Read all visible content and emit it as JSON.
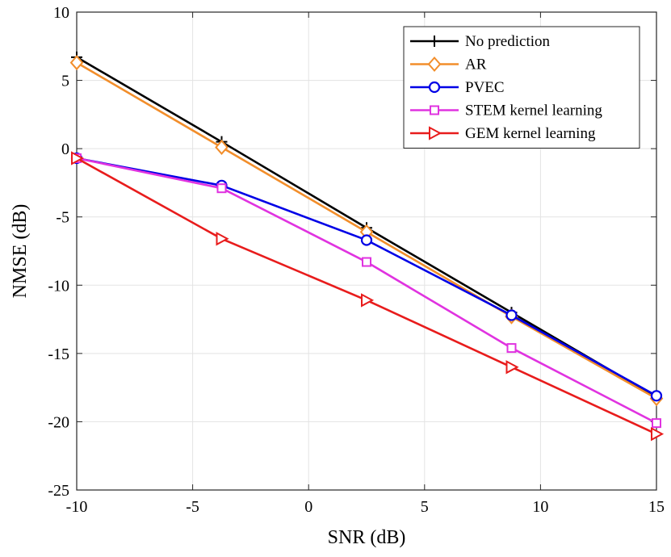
{
  "chart_data": {
    "type": "line",
    "title": "",
    "xlabel": "SNR (dB)",
    "ylabel": "NMSE (dB)",
    "xlim": [
      -10,
      15
    ],
    "ylim": [
      -25,
      10
    ],
    "xticks": [
      -10,
      -5,
      0,
      5,
      10,
      15
    ],
    "yticks": [
      -25,
      -20,
      -15,
      -10,
      -5,
      0,
      5,
      10
    ],
    "grid": true,
    "legend_position": "top-right",
    "x": [
      -10,
      -3.75,
      2.5,
      8.75,
      15
    ],
    "series": [
      {
        "name": "No prediction",
        "color": "#000000",
        "marker": "plus",
        "values": [
          6.7,
          0.5,
          -5.8,
          -12.0,
          -18.2
        ]
      },
      {
        "name": "AR",
        "color": "#f28e2b",
        "marker": "diamond",
        "values": [
          6.3,
          0.1,
          -6.1,
          -12.3,
          -18.3
        ]
      },
      {
        "name": "PVEC",
        "color": "#0000e6",
        "marker": "circle",
        "values": [
          -0.7,
          -2.7,
          -6.7,
          -12.2,
          -18.1
        ]
      },
      {
        "name": "STEM kernel learning",
        "color": "#e033e0",
        "marker": "square",
        "values": [
          -0.7,
          -2.9,
          -8.3,
          -14.6,
          -20.1
        ]
      },
      {
        "name": "GEM kernel learning",
        "color": "#e81c1c",
        "marker": "triangle-right",
        "values": [
          -0.7,
          -6.6,
          -11.1,
          -16.0,
          -20.9
        ]
      }
    ]
  }
}
